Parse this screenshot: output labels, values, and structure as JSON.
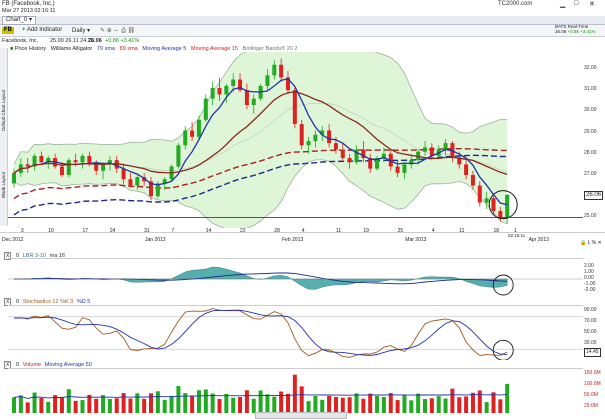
{
  "window": {
    "title": "FB (Facebook, Inc.)",
    "datetime": "Mar 27 2013 02:16:11",
    "brand": "TC2000.com",
    "tab": "Chart_0"
  },
  "toolbar": {
    "symbol_badge": "FB",
    "add_indicator": "Add Indicator",
    "timeframe": "Daily",
    "realtime_label": "BATS Real-Time",
    "price_current": "26.06",
    "price_change": "+0.86",
    "price_change_pct": "+3.41%"
  },
  "info": {
    "name": "Facebook, Inc.",
    "ohlc": "25.00  26.11  24.72",
    "last": "26.06",
    "change": "+0.86  +3.41%"
  },
  "price_panel": {
    "legend": [
      "Price History",
      "Williams Alligator",
      "79 sma",
      "89 sma",
      "Moving Average 5",
      "Moving Average 15",
      "Bollinger Bands® 20 2"
    ],
    "legend_colors": [
      "#2a8a2a",
      "#333333",
      "#2b3a9a",
      "#c02020",
      "#2233aa",
      "#cc2222",
      "#7a8a7a"
    ],
    "y_ticks": [
      "32.00",
      "31.00",
      "30.00",
      "29.00",
      "28.00",
      "27.00",
      "26.06",
      "25.00"
    ],
    "x_ticks": [
      "3",
      "10",
      "17",
      "24",
      "31",
      "7",
      "14",
      "22",
      "28",
      "4",
      "11",
      "19",
      "25",
      "4",
      "11",
      "18",
      "1"
    ],
    "month_labels": [
      "Dec 2012",
      "Jan 2013",
      "Feb 2013",
      "Mar 2013",
      "Apr 2013"
    ],
    "cursor_time": "02:16:11",
    "side_tabs": [
      "Default Chart Layout",
      "Blank Layout"
    ]
  },
  "chart_data": [
    {
      "type": "candlestick",
      "title": "FB (Facebook, Inc.) Daily",
      "ylim": [
        24.5,
        32.8
      ],
      "series": [
        {
          "name": "Price History",
          "ohlc": [
            [
              26.6,
              27.3,
              26.4,
              27.1
            ],
            [
              27.1,
              27.8,
              26.9,
              27.5
            ],
            [
              27.5,
              27.8,
              27.1,
              27.4
            ],
            [
              27.4,
              28.0,
              27.2,
              27.9
            ],
            [
              27.9,
              28.1,
              27.5,
              27.6
            ],
            [
              27.6,
              27.9,
              27.3,
              27.8
            ],
            [
              27.8,
              28.0,
              27.3,
              27.4
            ],
            [
              27.4,
              27.6,
              26.9,
              27.0
            ],
            [
              27.0,
              27.8,
              26.9,
              27.7
            ],
            [
              27.7,
              28.0,
              27.4,
              27.6
            ],
            [
              27.6,
              28.0,
              27.3,
              27.9
            ],
            [
              27.9,
              28.1,
              27.4,
              27.5
            ],
            [
              27.5,
              27.7,
              27.0,
              27.2
            ],
            [
              27.2,
              27.6,
              26.8,
              27.5
            ],
            [
              27.5,
              27.9,
              27.2,
              27.7
            ],
            [
              27.7,
              27.9,
              27.1,
              27.3
            ],
            [
              27.3,
              27.5,
              26.6,
              26.8
            ],
            [
              26.8,
              27.1,
              26.4,
              26.5
            ],
            [
              26.5,
              27.0,
              26.3,
              26.9
            ],
            [
              26.9,
              27.1,
              26.5,
              26.7
            ],
            [
              26.7,
              26.9,
              25.8,
              26.0
            ],
            [
              26.0,
              26.7,
              25.9,
              26.6
            ],
            [
              26.6,
              26.9,
              26.3,
              26.8
            ],
            [
              26.8,
              27.5,
              26.7,
              27.4
            ],
            [
              27.4,
              28.5,
              27.3,
              28.4
            ],
            [
              28.4,
              29.3,
              28.2,
              29.1
            ],
            [
              29.1,
              29.5,
              28.6,
              28.8
            ],
            [
              28.8,
              29.8,
              28.7,
              29.6
            ],
            [
              29.6,
              30.8,
              29.5,
              30.6
            ],
            [
              30.6,
              31.4,
              30.3,
              31.1
            ],
            [
              31.1,
              31.6,
              30.5,
              30.8
            ],
            [
              30.8,
              31.3,
              30.4,
              31.2
            ],
            [
              31.2,
              31.8,
              30.9,
              31.5
            ],
            [
              31.5,
              31.8,
              30.9,
              31.0
            ],
            [
              31.0,
              31.3,
              30.1,
              30.3
            ],
            [
              30.3,
              30.8,
              29.9,
              30.6
            ],
            [
              30.6,
              31.3,
              30.5,
              31.2
            ],
            [
              31.2,
              32.0,
              31.0,
              31.7
            ],
            [
              31.7,
              32.4,
              31.5,
              32.2
            ],
            [
              32.2,
              32.5,
              31.4,
              31.6
            ],
            [
              31.6,
              31.9,
              30.8,
              31.0
            ],
            [
              31.0,
              31.1,
              29.2,
              29.4
            ],
            [
              29.4,
              29.6,
              28.2,
              28.4
            ],
            [
              28.4,
              28.8,
              28.0,
              28.6
            ],
            [
              28.6,
              29.1,
              28.3,
              28.9
            ],
            [
              28.9,
              29.3,
              28.6,
              29.1
            ],
            [
              29.1,
              29.4,
              28.3,
              28.5
            ],
            [
              28.5,
              28.8,
              28.0,
              28.2
            ],
            [
              28.2,
              28.5,
              27.6,
              27.8
            ],
            [
              27.8,
              28.0,
              27.3,
              27.6
            ],
            [
              27.6,
              28.4,
              27.5,
              28.2
            ],
            [
              28.2,
              28.6,
              27.6,
              27.8
            ],
            [
              27.8,
              28.0,
              27.1,
              27.3
            ],
            [
              27.3,
              27.9,
              27.2,
              27.8
            ],
            [
              27.8,
              28.3,
              27.6,
              28.0
            ],
            [
              28.0,
              28.2,
              27.2,
              27.4
            ],
            [
              27.4,
              27.7,
              26.9,
              27.1
            ],
            [
              27.1,
              27.6,
              26.8,
              27.5
            ],
            [
              27.5,
              27.9,
              27.3,
              27.7
            ],
            [
              27.7,
              28.2,
              27.5,
              28.1
            ],
            [
              28.1,
              28.6,
              27.9,
              28.3
            ],
            [
              28.3,
              28.5,
              27.7,
              27.9
            ],
            [
              27.9,
              28.4,
              27.8,
              28.2
            ],
            [
              28.2,
              28.7,
              27.9,
              28.5
            ],
            [
              28.5,
              28.6,
              27.6,
              27.8
            ],
            [
              27.8,
              28.1,
              27.3,
              27.5
            ],
            [
              27.5,
              27.8,
              26.8,
              27.0
            ],
            [
              27.0,
              27.2,
              26.3,
              26.5
            ],
            [
              26.5,
              26.7,
              25.5,
              25.7
            ],
            [
              25.7,
              26.2,
              25.4,
              25.9
            ],
            [
              25.9,
              26.0,
              25.1,
              25.3
            ],
            [
              25.3,
              25.5,
              24.8,
              25.0
            ],
            [
              25.0,
              26.1,
              24.7,
              26.06
            ]
          ]
        }
      ]
    },
    {
      "type": "line",
      "title": "LBR 3-10  ma 16",
      "y_ticks": [
        "2.00",
        "1.00",
        "0.00",
        "-1.00",
        "-2.00"
      ]
    },
    {
      "type": "line",
      "title": "Stochastics 12 %K 3 %D 5",
      "y_ticks": [
        "90.00",
        "70.00",
        "50.00",
        "30.00",
        "14.45"
      ]
    },
    {
      "type": "bar",
      "title": "Volume  Moving Average 50",
      "y_ticks": [
        "150.0M",
        "100.0M",
        "50.0M",
        "29.0M"
      ]
    }
  ],
  "indicators": {
    "lbr": {
      "id": "0",
      "label": "LBR 3-10",
      "ma": "ma 16",
      "last": "-0.21"
    },
    "stoch": {
      "id": "0",
      "label": "Stochastics 12 %K 3",
      "d": "%D 5",
      "last": "14.45"
    },
    "volume": {
      "id": "0",
      "label": "Volume",
      "ma": "Moving Average 50",
      "last": "29.0M"
    }
  },
  "colors": {
    "up": "#22aa22",
    "down": "#dd2222",
    "bb_fill": "#dff5d8",
    "lbr_fill": "#3aa0a0",
    "stoch_k": "#a05a20",
    "stoch_d": "#2233aa",
    "highlight": "#1a1a1a"
  }
}
